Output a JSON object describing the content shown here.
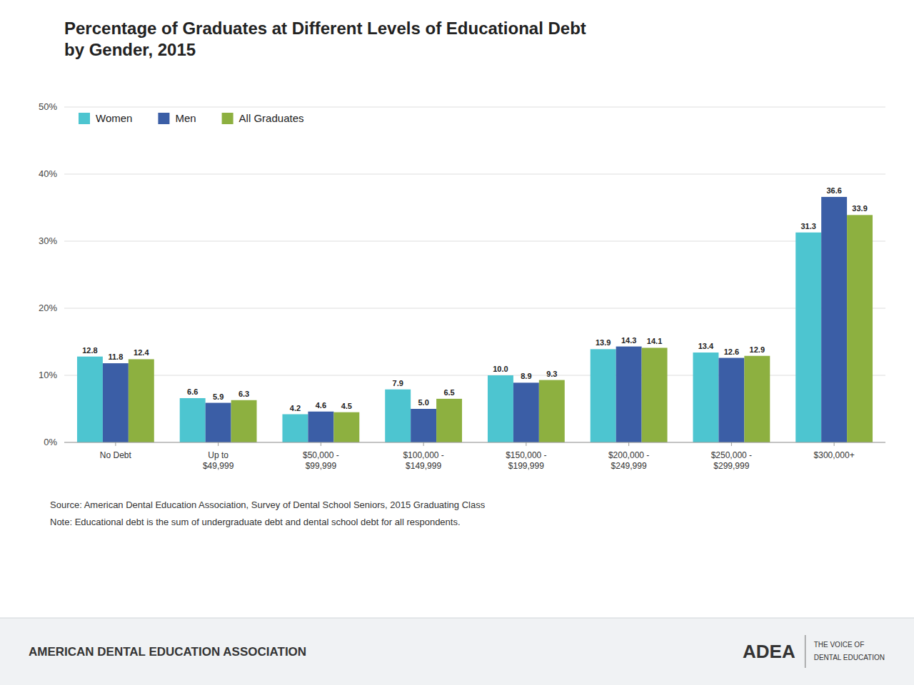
{
  "chart_data": {
    "type": "bar",
    "title": "Percentage of Graduates at Different Levels of Educational Debt\nby Gender, 2015",
    "categories": [
      "No Debt",
      "Up to\n$49,999",
      "$50,000 -\n$99,999",
      "$100,000 -\n$149,999",
      "$150,000 -\n$199,999",
      "$200,000 -\n$249,999",
      "$250,000 -\n$299,999",
      "$300,000+"
    ],
    "series": [
      {
        "name": "Women",
        "color": "#4DC5D0",
        "values": [
          12.8,
          6.6,
          4.2,
          7.9,
          10.0,
          13.9,
          13.4,
          31.3
        ],
        "value_labels": [
          "12.8",
          "6.6",
          "4.2",
          "7.9",
          "10.0",
          "13.9",
          "13.4",
          "31.3"
        ]
      },
      {
        "name": "Men",
        "color": "#3B5EA6",
        "values": [
          11.8,
          5.9,
          4.6,
          5.0,
          8.9,
          14.3,
          12.6,
          36.6
        ],
        "value_labels": [
          "11.8",
          "5.9",
          "4.6",
          "5.0",
          "8.9",
          "14.3",
          "12.6",
          "36.6"
        ]
      },
      {
        "name": "All Graduates",
        "color": "#8DB040",
        "values": [
          12.4,
          6.3,
          4.5,
          6.5,
          9.3,
          14.1,
          12.9,
          33.9
        ]
      }
    ],
    "ylim": [
      0,
      50
    ],
    "yticks": [
      {
        "value": 0,
        "label": "0%"
      },
      {
        "value": 10,
        "label": "10%"
      },
      {
        "value": 20,
        "label": "20%"
      },
      {
        "value": 30,
        "label": "30%"
      },
      {
        "value": 40,
        "label": "40%"
      },
      {
        "value": 50,
        "label": "50%"
      }
    ],
    "grid": true,
    "legend": "upper left",
    "data_labels": true,
    "annotations": [
      "Source: American Dental Education Association, Survey of Dental School Seniors, 2015 Graduating Class",
      "Note: Educational debt is the sum of undergraduate debt and dental school debt for all respondents.",
      "AMERICAN DENTAL EDUCATION ASSOCIATION",
      "ADEA",
      "THE VOICE OF",
      "DENTAL EDUCATION"
    ]
  }
}
